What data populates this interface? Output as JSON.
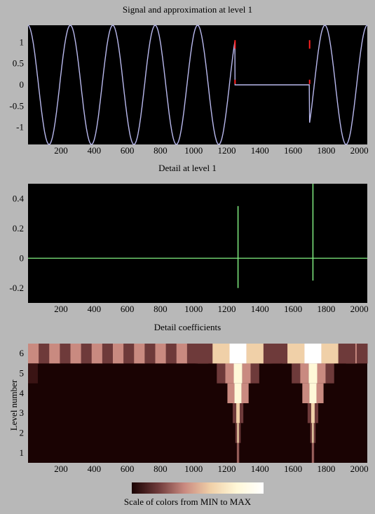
{
  "titles": {
    "top": "Signal and approximation at level 1",
    "middle": "Detail at level 1",
    "bottom": "Detail coefficients",
    "ylabel_bottom": "Level number",
    "colorbar": "Scale of colors from MIN to MAX"
  },
  "chart_data": [
    {
      "type": "line",
      "title": "Signal and approximation at level 1",
      "xlim": [
        1,
        2048
      ],
      "ylim": [
        -1.4,
        1.4
      ],
      "xticks": [
        200,
        400,
        600,
        800,
        1000,
        1200,
        1400,
        1600,
        1800,
        2000
      ],
      "yticks": [
        1,
        0.5,
        0,
        -0.5,
        -1
      ],
      "ytick_labels": [
        "1",
        "0.5",
        "0",
        "-0.5",
        "-1"
      ],
      "signal": {
        "description_segments": [
          {
            "x_start": 1,
            "x_end": 1250,
            "kind": "sine",
            "period": 256,
            "amplitude": 1.4
          },
          {
            "x_start": 1250,
            "x_end": 1700,
            "kind": "constant",
            "value": 0
          },
          {
            "x_start": 1700,
            "x_end": 2048,
            "kind": "sine",
            "period": 256,
            "amplitude": 1.4
          }
        ],
        "jump_points": [
          1250,
          1700
        ]
      },
      "colors": {
        "background": "#000000",
        "signal": "#b9b9ee",
        "marker": "#ff2020"
      }
    },
    {
      "type": "line",
      "title": "Detail at level 1",
      "xlim": [
        1,
        2048
      ],
      "ylim": [
        -0.3,
        0.5
      ],
      "xticks": [
        200,
        400,
        600,
        800,
        1000,
        1200,
        1400,
        1600,
        1800,
        2000
      ],
      "yticks": [
        0.4,
        0.2,
        0,
        -0.2
      ],
      "ytick_labels": [
        "0.4",
        "0.2",
        "0",
        "-0.2"
      ],
      "spikes": [
        {
          "x": 1268,
          "max": 0.35,
          "min": -0.2
        },
        {
          "x": 1720,
          "max": 0.5,
          "min": -0.15
        }
      ],
      "colors": {
        "background": "#000000",
        "line": "#80ee80"
      }
    },
    {
      "type": "heatmap",
      "title": "Detail coefficients",
      "ylabel": "Level number",
      "xlim": [
        1,
        2048
      ],
      "ylim": [
        0.5,
        6.5
      ],
      "xticks": [
        200,
        400,
        600,
        800,
        1000,
        1200,
        1400,
        1600,
        1800,
        2000
      ],
      "yticks": [
        1,
        2,
        3,
        4,
        5,
        6
      ],
      "levels": [
        1,
        2,
        3,
        4,
        5,
        6
      ],
      "hotspots": [
        1268,
        1720
      ],
      "colormap": [
        "#1a0303",
        "#6e3a3a",
        "#c98a80",
        "#f0d0a8",
        "#fff8d8",
        "#ffffff"
      ],
      "colorbar_label": "Scale of colors from MIN to MAX"
    }
  ]
}
